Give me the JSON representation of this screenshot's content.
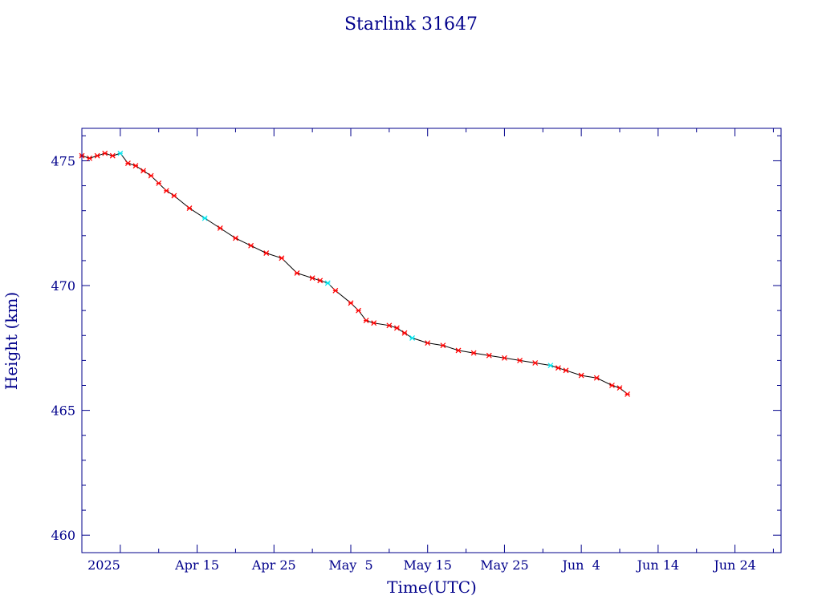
{
  "chart_data": {
    "type": "scatter",
    "title": "Starlink 31647",
    "xlabel": "Time(UTC)",
    "ylabel": "Height (km)",
    "xlim": [
      "2025-03-31",
      "2025-06-30"
    ],
    "ylim": [
      459.3,
      476.3
    ],
    "x_tick_labels": [
      "2025",
      "Apr 15",
      "Apr 25",
      "May  5",
      "May 15",
      "May 25",
      "Jun  4",
      "Jun 14",
      "Jun 24"
    ],
    "x_tick_dates": [
      "2025-04-05",
      "2025-04-15",
      "2025-04-25",
      "2025-05-05",
      "2025-05-15",
      "2025-05-25",
      "2025-06-04",
      "2025-06-14",
      "2025-06-24"
    ],
    "y_ticks": [
      460,
      465,
      470,
      475
    ],
    "grid": false,
    "colors": {
      "axes": "#00008b",
      "points": "#ff0000",
      "alt_points": "#00e5ee",
      "line": "#000000"
    },
    "series": [
      {
        "x": [
          "2025-03-31",
          "2025-04-01",
          "2025-04-02",
          "2025-04-03",
          "2025-04-04",
          "2025-04-05",
          "2025-04-06",
          "2025-04-07",
          "2025-04-08",
          "2025-04-09",
          "2025-04-10",
          "2025-04-11",
          "2025-04-12",
          "2025-04-14",
          "2025-04-16",
          "2025-04-18",
          "2025-04-20",
          "2025-04-22",
          "2025-04-24",
          "2025-04-26",
          "2025-04-28",
          "2025-04-30",
          "2025-05-01",
          "2025-05-02",
          "2025-05-03",
          "2025-05-05",
          "2025-05-06",
          "2025-05-07",
          "2025-05-08",
          "2025-05-10",
          "2025-05-11",
          "2025-05-12",
          "2025-05-13",
          "2025-05-15",
          "2025-05-17",
          "2025-05-19",
          "2025-05-21",
          "2025-05-23",
          "2025-05-25",
          "2025-05-27",
          "2025-05-29",
          "2025-05-31",
          "2025-06-01",
          "2025-06-02",
          "2025-06-04",
          "2025-06-06",
          "2025-06-08",
          "2025-06-09",
          "2025-06-10"
        ],
        "y": [
          475.2,
          475.1,
          475.2,
          475.3,
          475.2,
          475.3,
          474.9,
          474.8,
          474.6,
          474.4,
          474.1,
          473.8,
          473.6,
          473.1,
          472.7,
          472.3,
          471.9,
          471.6,
          471.3,
          471.1,
          470.5,
          470.3,
          470.2,
          470.1,
          469.8,
          469.3,
          469.0,
          468.6,
          468.5,
          468.4,
          468.3,
          468.1,
          467.9,
          467.7,
          467.6,
          467.4,
          467.3,
          467.2,
          467.1,
          467.0,
          466.9,
          466.8,
          466.7,
          466.6,
          466.4,
          466.3,
          466.0,
          465.9,
          465.65
        ]
      }
    ]
  }
}
